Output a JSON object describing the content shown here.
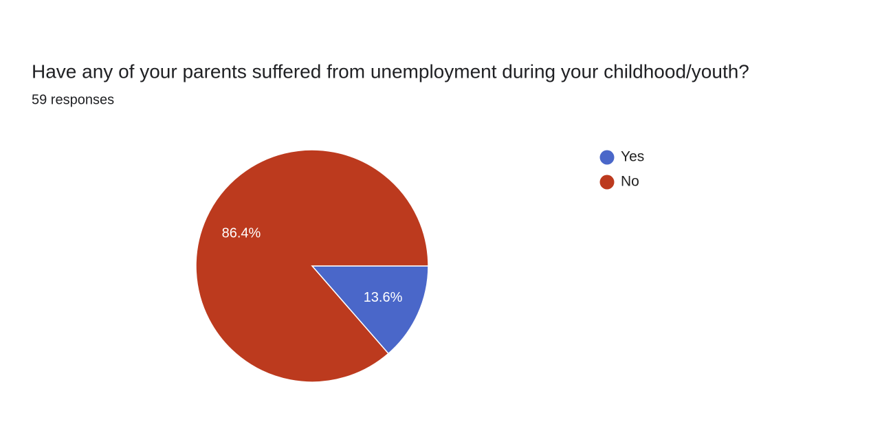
{
  "chart_data": {
    "type": "pie",
    "title": "Have any of your parents suffered from unemployment during your childhood/youth?",
    "subtitle": "59 responses",
    "categories": [
      "Yes",
      "No"
    ],
    "values": [
      13.6,
      86.4
    ],
    "value_labels": [
      "13.6%",
      "86.4%"
    ],
    "colors": [
      "#4a67c9",
      "#bc3a1e"
    ],
    "legend": "right"
  }
}
